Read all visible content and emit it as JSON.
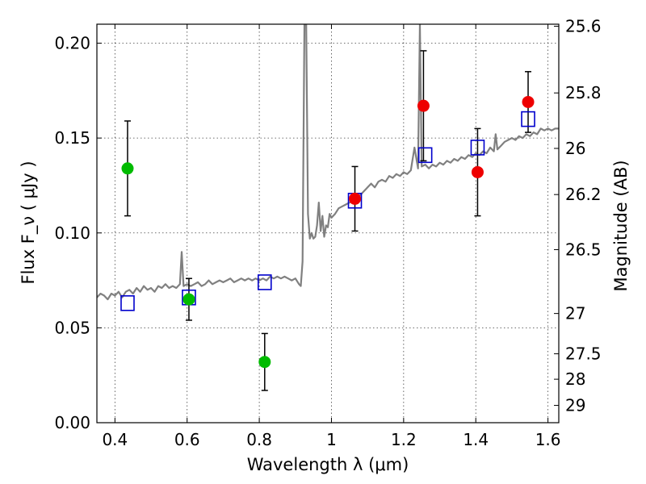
{
  "chart_data": {
    "type": "scatter",
    "title": "",
    "xlabel": "Wavelength  λ (μm)",
    "ylabel": "Flux  F_ν ( μJy )",
    "ylabel_right": "Magnitude (AB)",
    "xlim": [
      0.35,
      1.63
    ],
    "ylim": [
      0.0,
      0.21
    ],
    "grid": true,
    "x_ticks": [
      {
        "value": 0.4,
        "label": "0.4"
      },
      {
        "value": 0.6,
        "label": "0.6"
      },
      {
        "value": 0.8,
        "label": "0.8"
      },
      {
        "value": 1.0,
        "label": "1"
      },
      {
        "value": 1.2,
        "label": "1.2"
      },
      {
        "value": 1.4,
        "label": "1.4"
      },
      {
        "value": 1.6,
        "label": "1.6"
      }
    ],
    "y_ticks": [
      {
        "value": 0.0,
        "label": "0.00"
      },
      {
        "value": 0.05,
        "label": "0.05"
      },
      {
        "value": 0.1,
        "label": "0.10"
      },
      {
        "value": 0.15,
        "label": "0.15"
      },
      {
        "value": 0.2,
        "label": "0.20"
      }
    ],
    "right_ticks": [
      {
        "value": 25.6,
        "label": "25.6"
      },
      {
        "value": 25.8,
        "label": "25.8"
      },
      {
        "value": 26.0,
        "label": "26"
      },
      {
        "value": 26.2,
        "label": "26.2"
      },
      {
        "value": 26.5,
        "label": "26.5"
      },
      {
        "value": 27.0,
        "label": "27"
      },
      {
        "value": 27.5,
        "label": "27.5"
      },
      {
        "value": 28.0,
        "label": "28"
      },
      {
        "value": 29.0,
        "label": "29"
      }
    ],
    "series": [
      {
        "marker": "line",
        "color": "#808080",
        "points": [
          [
            0.35,
            0.066
          ],
          [
            0.36,
            0.068
          ],
          [
            0.37,
            0.067
          ],
          [
            0.38,
            0.065
          ],
          [
            0.39,
            0.068
          ],
          [
            0.4,
            0.067
          ],
          [
            0.41,
            0.069
          ],
          [
            0.42,
            0.066
          ],
          [
            0.43,
            0.069
          ],
          [
            0.44,
            0.07
          ],
          [
            0.45,
            0.068
          ],
          [
            0.46,
            0.071
          ],
          [
            0.47,
            0.069
          ],
          [
            0.48,
            0.072
          ],
          [
            0.49,
            0.07
          ],
          [
            0.5,
            0.071
          ],
          [
            0.51,
            0.069
          ],
          [
            0.52,
            0.072
          ],
          [
            0.53,
            0.071
          ],
          [
            0.54,
            0.073
          ],
          [
            0.55,
            0.071
          ],
          [
            0.56,
            0.072
          ],
          [
            0.57,
            0.071
          ],
          [
            0.58,
            0.073
          ],
          [
            0.585,
            0.09
          ],
          [
            0.59,
            0.072
          ],
          [
            0.6,
            0.073
          ],
          [
            0.61,
            0.072
          ],
          [
            0.62,
            0.073
          ],
          [
            0.63,
            0.074
          ],
          [
            0.64,
            0.072
          ],
          [
            0.65,
            0.073
          ],
          [
            0.66,
            0.075
          ],
          [
            0.67,
            0.073
          ],
          [
            0.68,
            0.074
          ],
          [
            0.69,
            0.075
          ],
          [
            0.7,
            0.074
          ],
          [
            0.71,
            0.075
          ],
          [
            0.72,
            0.076
          ],
          [
            0.73,
            0.074
          ],
          [
            0.74,
            0.075
          ],
          [
            0.75,
            0.076
          ],
          [
            0.76,
            0.075
          ],
          [
            0.77,
            0.076
          ],
          [
            0.78,
            0.075
          ],
          [
            0.79,
            0.076
          ],
          [
            0.8,
            0.075
          ],
          [
            0.81,
            0.076
          ],
          [
            0.82,
            0.075
          ],
          [
            0.83,
            0.077
          ],
          [
            0.84,
            0.076
          ],
          [
            0.85,
            0.077
          ],
          [
            0.86,
            0.076
          ],
          [
            0.87,
            0.077
          ],
          [
            0.88,
            0.076
          ],
          [
            0.89,
            0.075
          ],
          [
            0.9,
            0.076
          ],
          [
            0.91,
            0.073
          ],
          [
            0.915,
            0.072
          ],
          [
            0.92,
            0.085
          ],
          [
            0.925,
            0.21
          ],
          [
            0.93,
            0.21
          ],
          [
            0.935,
            0.11
          ],
          [
            0.94,
            0.097
          ],
          [
            0.945,
            0.1
          ],
          [
            0.95,
            0.097
          ],
          [
            0.955,
            0.098
          ],
          [
            0.96,
            0.104
          ],
          [
            0.965,
            0.116
          ],
          [
            0.97,
            0.101
          ],
          [
            0.975,
            0.109
          ],
          [
            0.98,
            0.098
          ],
          [
            0.985,
            0.104
          ],
          [
            0.99,
            0.103
          ],
          [
            0.995,
            0.11
          ],
          [
            1.0,
            0.108
          ],
          [
            1.01,
            0.11
          ],
          [
            1.02,
            0.113
          ],
          [
            1.03,
            0.114
          ],
          [
            1.04,
            0.115
          ],
          [
            1.05,
            0.116
          ],
          [
            1.06,
            0.117
          ],
          [
            1.07,
            0.118
          ],
          [
            1.08,
            0.12
          ],
          [
            1.09,
            0.122
          ],
          [
            1.1,
            0.124
          ],
          [
            1.11,
            0.126
          ],
          [
            1.12,
            0.124
          ],
          [
            1.13,
            0.127
          ],
          [
            1.14,
            0.128
          ],
          [
            1.15,
            0.127
          ],
          [
            1.16,
            0.13
          ],
          [
            1.17,
            0.129
          ],
          [
            1.18,
            0.131
          ],
          [
            1.19,
            0.13
          ],
          [
            1.2,
            0.132
          ],
          [
            1.21,
            0.131
          ],
          [
            1.22,
            0.133
          ],
          [
            1.23,
            0.145
          ],
          [
            1.24,
            0.134
          ],
          [
            1.245,
            0.21
          ],
          [
            1.25,
            0.135
          ],
          [
            1.26,
            0.136
          ],
          [
            1.27,
            0.134
          ],
          [
            1.28,
            0.136
          ],
          [
            1.29,
            0.135
          ],
          [
            1.3,
            0.137
          ],
          [
            1.31,
            0.136
          ],
          [
            1.32,
            0.138
          ],
          [
            1.33,
            0.137
          ],
          [
            1.34,
            0.139
          ],
          [
            1.35,
            0.138
          ],
          [
            1.36,
            0.14
          ],
          [
            1.37,
            0.139
          ],
          [
            1.38,
            0.141
          ],
          [
            1.39,
            0.14
          ],
          [
            1.4,
            0.142
          ],
          [
            1.41,
            0.141
          ],
          [
            1.42,
            0.143
          ],
          [
            1.43,
            0.142
          ],
          [
            1.44,
            0.145
          ],
          [
            1.45,
            0.143
          ],
          [
            1.455,
            0.152
          ],
          [
            1.46,
            0.144
          ],
          [
            1.47,
            0.146
          ],
          [
            1.48,
            0.148
          ],
          [
            1.49,
            0.149
          ],
          [
            1.5,
            0.15
          ],
          [
            1.51,
            0.149
          ],
          [
            1.52,
            0.151
          ],
          [
            1.53,
            0.15
          ],
          [
            1.54,
            0.152
          ],
          [
            1.55,
            0.151
          ],
          [
            1.56,
            0.153
          ],
          [
            1.57,
            0.152
          ],
          [
            1.58,
            0.155
          ],
          [
            1.59,
            0.154
          ],
          [
            1.6,
            0.155
          ],
          [
            1.61,
            0.154
          ],
          [
            1.62,
            0.155
          ],
          [
            1.63,
            0.155
          ]
        ]
      },
      {
        "marker": "circle",
        "color": "#00bb00",
        "points": [
          {
            "x": 0.435,
            "y": 0.134,
            "err": 0.025
          },
          {
            "x": 0.605,
            "y": 0.065,
            "err": 0.011
          },
          {
            "x": 0.815,
            "y": 0.032,
            "err": 0.015
          }
        ]
      },
      {
        "marker": "circle",
        "color": "#ee0000",
        "points": [
          {
            "x": 1.065,
            "y": 0.118,
            "err": 0.017
          },
          {
            "x": 1.255,
            "y": 0.167,
            "err": 0.029
          },
          {
            "x": 1.405,
            "y": 0.132,
            "err": 0.023
          },
          {
            "x": 1.545,
            "y": 0.169,
            "err": 0.016
          }
        ]
      },
      {
        "marker": "square",
        "color": "#0000cc",
        "points": [
          {
            "x": 0.435,
            "y": 0.063
          },
          {
            "x": 0.605,
            "y": 0.066
          },
          {
            "x": 0.815,
            "y": 0.074
          },
          {
            "x": 1.065,
            "y": 0.117
          },
          {
            "x": 1.26,
            "y": 0.141
          },
          {
            "x": 1.405,
            "y": 0.145
          },
          {
            "x": 1.545,
            "y": 0.16
          }
        ]
      }
    ]
  }
}
